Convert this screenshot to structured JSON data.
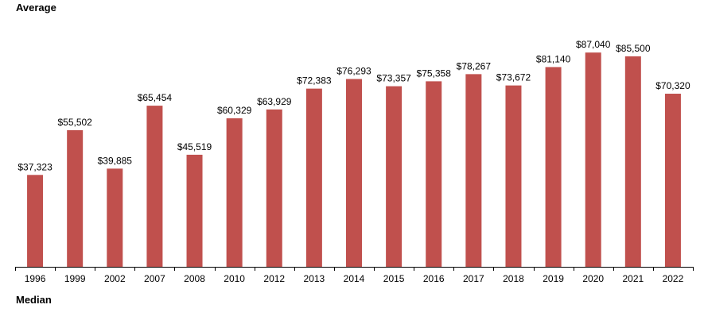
{
  "top_label": "Average",
  "bottom_label": "Median",
  "chart_data": {
    "type": "bar",
    "title": "Average",
    "xlabel": "",
    "ylabel": "",
    "ylim": [
      0,
      90000
    ],
    "grid": false,
    "bar_color": "#c0504d",
    "categories": [
      "1996",
      "1999",
      "2002",
      "2007",
      "2008",
      "2010",
      "2012",
      "2013",
      "2014",
      "2015",
      "2016",
      "2017",
      "2018",
      "2019",
      "2020",
      "2021",
      "2022"
    ],
    "values": [
      37323,
      55502,
      39885,
      65454,
      45519,
      60329,
      63929,
      72383,
      76293,
      73357,
      75358,
      78267,
      73672,
      81140,
      87040,
      85500,
      70320
    ],
    "value_labels": [
      "$37,323",
      "$55,502",
      "$39,885",
      "$65,454",
      "$45,519",
      "$60,329",
      "$63,929",
      "$72,383",
      "$76,293",
      "$73,357",
      "$75,358",
      "$78,267",
      "$73,672",
      "$81,140",
      "$87,040",
      "$85,500",
      "$70,320"
    ]
  }
}
